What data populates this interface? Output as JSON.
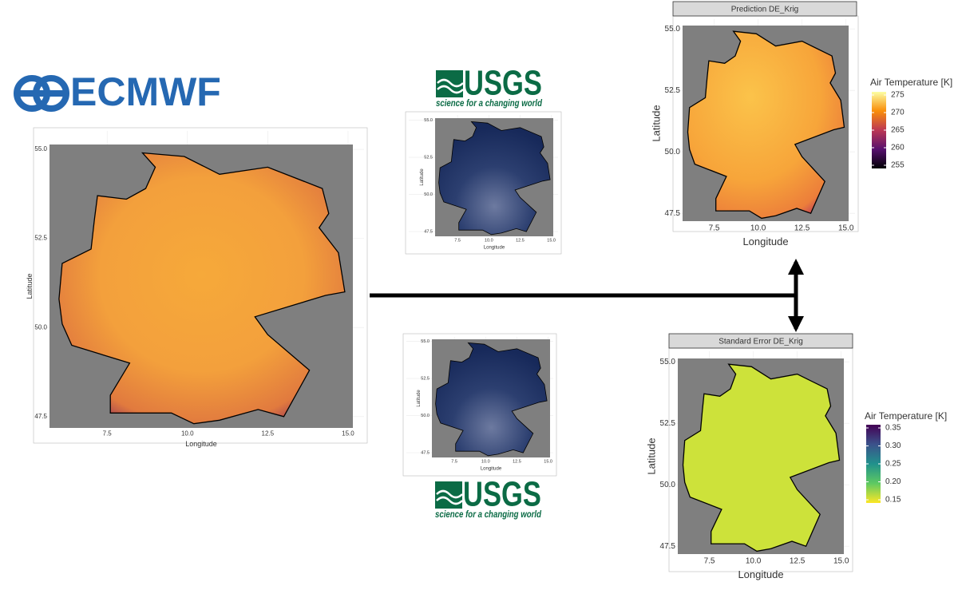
{
  "logos": {
    "ecmwf": "ECMWF",
    "usgs_top": {
      "name": "USGS",
      "tagline": "science for a changing world"
    },
    "usgs_bottom": {
      "name": "USGS",
      "tagline": "science for a changing world"
    }
  },
  "panels": {
    "ecmwf": {
      "x_label": "Longitude",
      "y_label": "Latitude",
      "x_ticks": [
        "7.5",
        "10.0",
        "12.5",
        "15.0"
      ],
      "y_ticks": [
        "47.5",
        "50.0",
        "52.5",
        "55.0"
      ]
    },
    "usgs_top": {
      "x_label": "Longitude",
      "y_label": "Latitude",
      "x_ticks": [
        "7.5",
        "10.0",
        "12.5",
        "15.0"
      ],
      "y_ticks": [
        "47.5",
        "50.0",
        "52.5",
        "55.0"
      ]
    },
    "usgs_bottom": {
      "x_label": "Longitude",
      "y_label": "Latitude",
      "x_ticks": [
        "7.5",
        "10.0",
        "12.5",
        "15.0"
      ],
      "y_ticks": [
        "47.5",
        "50.0",
        "52.5",
        "55.0"
      ]
    },
    "prediction": {
      "title": "Prediction DE_Krig",
      "x_label": "Longitude",
      "y_label": "Latitude",
      "x_ticks": [
        "7.5",
        "10.0",
        "12.5",
        "15.0"
      ],
      "y_ticks": [
        "47.5",
        "50.0",
        "52.5",
        "55.0"
      ],
      "legend": {
        "title": "Air Temperature [K]",
        "ticks": [
          "275",
          "270",
          "265",
          "260",
          "255"
        ]
      }
    },
    "std_error": {
      "title": "Standard Error DE_Krig",
      "x_label": "Longitude",
      "y_label": "Latitude",
      "x_ticks": [
        "7.5",
        "10.0",
        "12.5",
        "15.0"
      ],
      "y_ticks": [
        "47.5",
        "50.0",
        "52.5",
        "55.0"
      ],
      "legend": {
        "title": "Air Temperature [K]",
        "ticks": [
          "0.35",
          "0.30",
          "0.25",
          "0.20",
          "0.15"
        ]
      }
    }
  }
}
